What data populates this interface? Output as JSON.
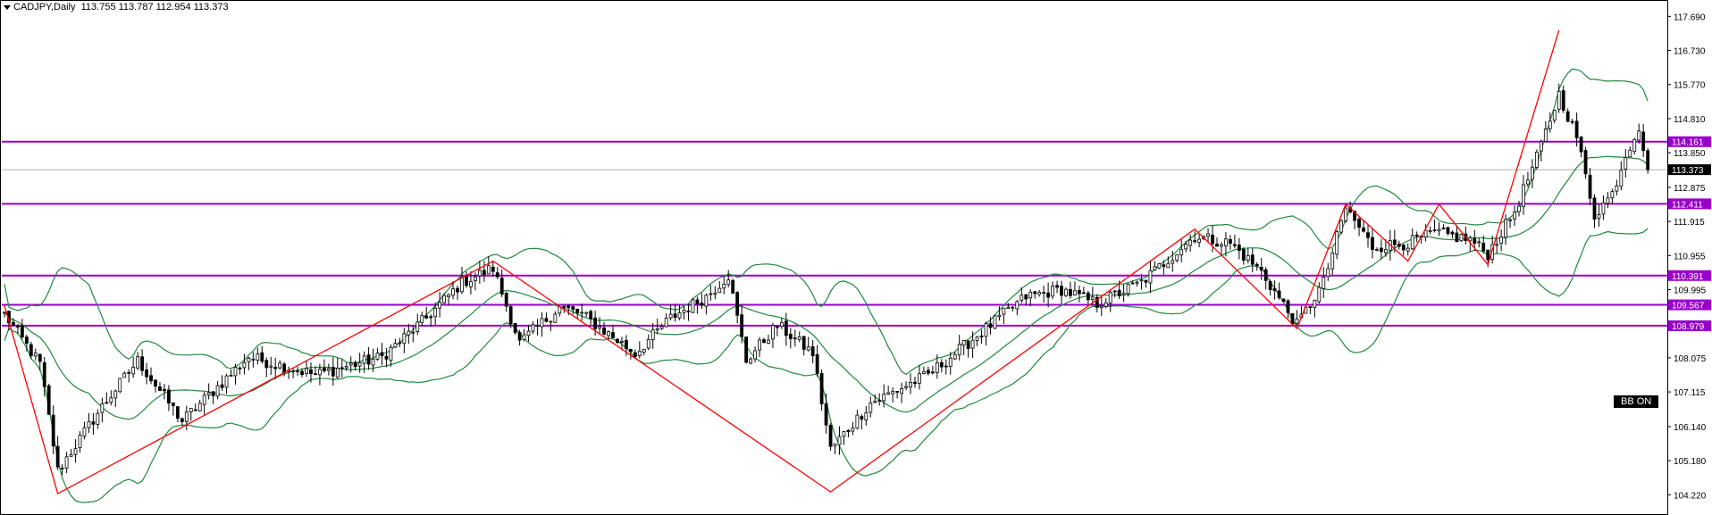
{
  "header": {
    "symbol": "CADJPY,Daily",
    "ohlc": "113.755 113.787 112.954 113.373"
  },
  "indicator_badge": "BB ON",
  "colors": {
    "bull": "#ffffff",
    "bear": "#000000",
    "bands": "#1e8a3c",
    "zigzag": "#ff0000",
    "levels": "#9900cc",
    "current_price_line": "#b0b0b0"
  },
  "chart_data": {
    "type": "candlestick",
    "symbol": "CADJPY",
    "timeframe": "Daily",
    "ylim": [
      103.8,
      118.0
    ],
    "y_ticks": [
      "117.690",
      "116.730",
      "115.770",
      "114.810",
      "113.850",
      "112.875",
      "111.915",
      "110.955",
      "109.995",
      "109.035",
      "108.075",
      "107.115",
      "106.140",
      "105.180",
      "104.220"
    ],
    "current_price": "113.373",
    "horizontal_levels": [
      "114.161",
      "112.411",
      "110.391",
      "109.567",
      "108.979"
    ],
    "zigzag": [
      [
        0,
        109.55
      ],
      [
        12,
        104.25
      ],
      [
        110,
        110.8
      ],
      [
        186,
        104.3
      ],
      [
        268,
        111.7
      ],
      [
        291,
        108.9
      ],
      [
        302,
        112.4
      ],
      [
        316,
        110.8
      ],
      [
        323,
        112.4
      ],
      [
        334,
        110.7
      ],
      [
        350,
        117.3
      ]
    ],
    "keypoints": [
      [
        0,
        109.3
      ],
      [
        8,
        107.9
      ],
      [
        12,
        104.9
      ],
      [
        22,
        106.7
      ],
      [
        30,
        108.0
      ],
      [
        40,
        106.3
      ],
      [
        55,
        108.1
      ],
      [
        70,
        107.6
      ],
      [
        85,
        108.1
      ],
      [
        95,
        109.2
      ],
      [
        103,
        110.2
      ],
      [
        110,
        110.6
      ],
      [
        116,
        108.5
      ],
      [
        125,
        109.5
      ],
      [
        130,
        109.3
      ],
      [
        142,
        108.2
      ],
      [
        150,
        109.2
      ],
      [
        158,
        109.8
      ],
      [
        163,
        110.4
      ],
      [
        167,
        108.0
      ],
      [
        174,
        109.0
      ],
      [
        182,
        108.2
      ],
      [
        186,
        105.5
      ],
      [
        195,
        106.8
      ],
      [
        208,
        107.6
      ],
      [
        220,
        108.8
      ],
      [
        230,
        109.8
      ],
      [
        238,
        110.0
      ],
      [
        246,
        109.6
      ],
      [
        256,
        110.2
      ],
      [
        268,
        111.5
      ],
      [
        276,
        111.3
      ],
      [
        283,
        110.5
      ],
      [
        291,
        109.0
      ],
      [
        297,
        110.2
      ],
      [
        302,
        112.3
      ],
      [
        308,
        111.2
      ],
      [
        316,
        111.3
      ],
      [
        322,
        111.6
      ],
      [
        330,
        111.4
      ],
      [
        334,
        111.0
      ],
      [
        340,
        112.2
      ],
      [
        345,
        113.7
      ],
      [
        350,
        115.5
      ],
      [
        354,
        114.3
      ],
      [
        358,
        112.1
      ],
      [
        362,
        112.7
      ],
      [
        365,
        113.8
      ],
      [
        368,
        114.6
      ],
      [
        370,
        113.373
      ]
    ],
    "bb_period": 20,
    "bb_deviation": 2
  }
}
